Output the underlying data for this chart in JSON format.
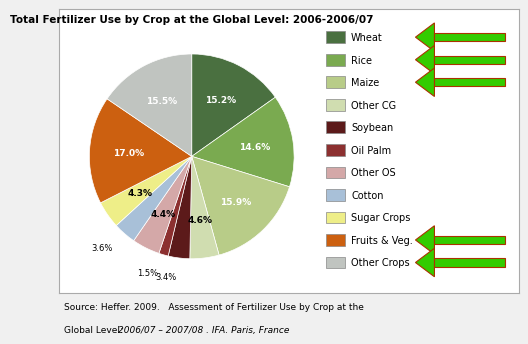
{
  "title": "Total Fertilizer Use by Crop at the Global Level: 2006-2006/07",
  "labels": [
    "Wheat",
    "Rice",
    "Maize",
    "Other CG",
    "Soybean",
    "Oil Palm",
    "Other OS",
    "Cotton",
    "Sugar Crops",
    "Fruits & Veg.",
    "Other Crops"
  ],
  "values": [
    15.2,
    14.6,
    15.9,
    4.6,
    3.4,
    1.5,
    4.4,
    3.6,
    4.3,
    17.0,
    15.5
  ],
  "colors": [
    "#4a7040",
    "#7aaa50",
    "#b8cc88",
    "#d0ddb0",
    "#5c1a1a",
    "#8c3030",
    "#d4a8a8",
    "#a8c0d8",
    "#eeee88",
    "#cc6010",
    "#c0c4c0"
  ],
  "startangle": 90,
  "arrow_items": [
    "Wheat",
    "Rice",
    "Maize",
    "Fruits & Veg.",
    "Other Crops"
  ],
  "background_color": "#f0f0f0",
  "box_background": "#ffffff",
  "source_line1": "Source: Heffer. 2009.   Assessment of Fertilizer Use by Crop at the",
  "source_line2_normal": "Global Level: ",
  "source_line2_italic": "2006/07 – 2007/08 . IFA. Paris, France"
}
